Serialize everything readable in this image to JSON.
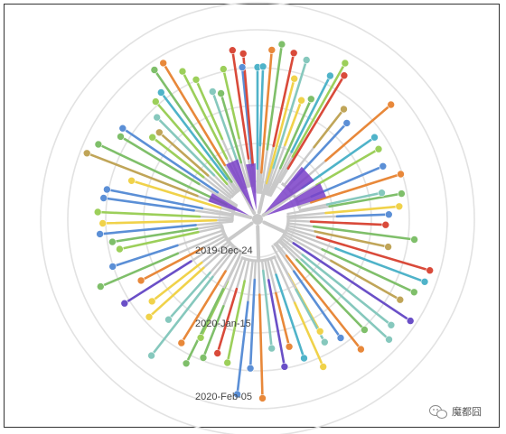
{
  "time_labels": [
    "2019-Dec-24",
    "2020-Jan-15",
    "2020-Feb-05"
  ],
  "watermark": "魔都囧",
  "colors": {
    "root": "#c9c9c9",
    "ring": "#e2e2e2",
    "tip_palette": [
      "#5b8fd6",
      "#e8883a",
      "#9ccf5a",
      "#f0d24a",
      "#4fb3c9",
      "#6a4fc7",
      "#d94a3a",
      "#86c8bd",
      "#c0a558",
      "#7fbf6a"
    ]
  }
}
